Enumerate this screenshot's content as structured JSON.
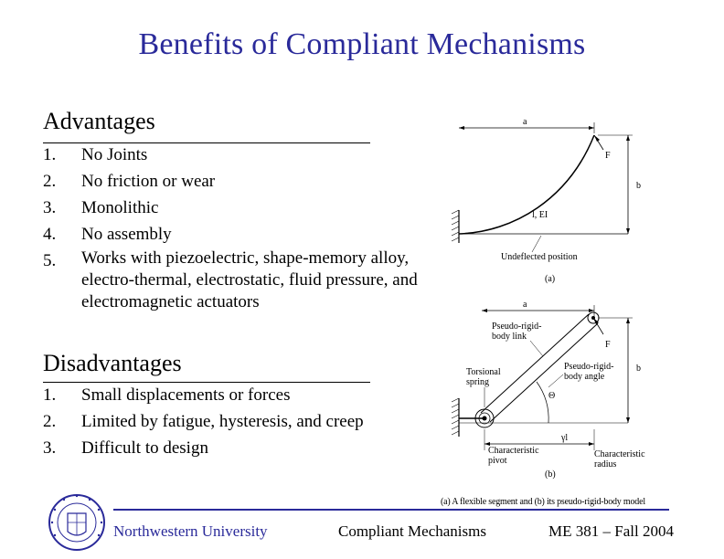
{
  "title": "Benefits of Compliant Mechanisms",
  "advantages": {
    "heading": "Advantages",
    "items": [
      {
        "num": "1.",
        "text": "No Joints"
      },
      {
        "num": "2.",
        "text": "No friction or wear"
      },
      {
        "num": "3.",
        "text": "Monolithic"
      },
      {
        "num": "4.",
        "text": "No assembly"
      },
      {
        "num": "5.",
        "text": "Works with piezoelectric, shape-memory alloy, electro-thermal, electrostatic, fluid pressure, and electromagnetic actuators"
      }
    ]
  },
  "disadvantages": {
    "heading": "Disadvantages",
    "items": [
      {
        "num": "1.",
        "text": "Small displacements or forces"
      },
      {
        "num": "2.",
        "text": "Limited by fatigue, hysteresis, and creep"
      },
      {
        "num": "3.",
        "text": "Difficult to design"
      }
    ]
  },
  "figure": {
    "a_label": "a",
    "b_label": "b",
    "f_label": "F",
    "lei_label": "l, EI",
    "undeflected": "Undeflected position",
    "panel_a": "(a)",
    "a2_label": "a",
    "b2_label": "b",
    "f2_label": "F",
    "prb_link": "Pseudo-rigid-body link",
    "prb_link_line1": "Pseudo-rigid-",
    "prb_link_line2": "body link",
    "torsional_line1": "Torsional",
    "torsional_line2": "spring",
    "prb_angle_line1": "Pseudo-rigid-",
    "prb_angle_line2": "body angle",
    "theta": "Θ",
    "gamma_l": "γl",
    "char_pivot_line1": "Characteristic",
    "char_pivot_line2": "pivot",
    "char_radius_line1": "Characteristic",
    "char_radius_line2": "radius",
    "panel_b": "(b)",
    "caption": "(a) A flexible segment and (b) its pseudo-rigid-body model"
  },
  "footer": {
    "left": "Northwestern University",
    "middle": "Compliant Mechanisms",
    "right": "ME 381 – Fall 2004"
  },
  "logo": {
    "seal_text": "NORTHWESTERN UNIVERSITY",
    "year": "1851"
  },
  "colors": {
    "title": "#2a2a9a",
    "footer_rule": "#2a2a9a"
  }
}
